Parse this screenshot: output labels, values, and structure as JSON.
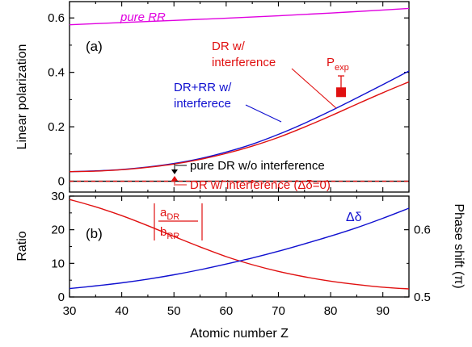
{
  "chart_data": [
    {
      "panel": "(a)",
      "type": "line",
      "ylabel": "Linear polarization",
      "xlim": [
        30,
        95
      ],
      "ylim": [
        -0.04,
        0.66
      ],
      "yticks": [
        "0",
        "0.2",
        "0.4",
        "0.6"
      ],
      "ytick_values": [
        0,
        0.2,
        0.4,
        0.6
      ],
      "series": [
        {
          "name": "pure RR",
          "color": "#e000e0",
          "x": [
            30,
            40,
            50,
            60,
            70,
            80,
            90,
            95
          ],
          "y": [
            0.575,
            0.583,
            0.591,
            0.599,
            0.608,
            0.618,
            0.629,
            0.635
          ]
        },
        {
          "name": "DR+RR w/ interferece",
          "color": "#1010d0",
          "x": [
            30,
            35,
            40,
            45,
            50,
            55,
            60,
            65,
            70,
            75,
            80,
            85,
            90,
            95
          ],
          "y": [
            0.035,
            0.038,
            0.043,
            0.052,
            0.065,
            0.083,
            0.107,
            0.136,
            0.172,
            0.213,
            0.258,
            0.306,
            0.355,
            0.405
          ]
        },
        {
          "name": "DR w/ interference",
          "color": "#e01010",
          "x": [
            30,
            35,
            40,
            45,
            50,
            55,
            60,
            65,
            70,
            75,
            80,
            85,
            90,
            95
          ],
          "y": [
            0.035,
            0.037,
            0.042,
            0.051,
            0.063,
            0.08,
            0.102,
            0.129,
            0.161,
            0.199,
            0.24,
            0.283,
            0.325,
            0.365
          ]
        },
        {
          "name": "pure DR w/o interference",
          "color": "#000000",
          "x": [
            30,
            95
          ],
          "y": [
            0,
            0
          ]
        },
        {
          "name": "DR w/ interference (Δδ=0)",
          "color": "#e01010",
          "dashed": true,
          "x": [
            30,
            95
          ],
          "y": [
            0,
            0
          ]
        },
        {
          "name": "P_exp",
          "color": "#e01010",
          "marker": "square",
          "x": [
            82
          ],
          "y": [
            0.327
          ],
          "err_plus": 0.06,
          "err_minus": 0
        }
      ],
      "annotations": {
        "panel_label": "(a)",
        "pure_rr": "pure RR",
        "dr_line1": "DR w/",
        "dr_line2": "interference",
        "drrr_line1": "DR+RR w/",
        "drrr_line2": "interferece",
        "pexp_main": "P",
        "pexp_sub": "exp",
        "pure_dr": "pure DR w/o interference",
        "dr_zero": "DR w/ interference (Δδ=0)"
      }
    },
    {
      "panel": "(b)",
      "type": "line",
      "xlabel": "Atomic number Z",
      "ylabel": "Ratio",
      "ylabel_right": "Phase shift (π)",
      "xlim": [
        30,
        95
      ],
      "xticks": [
        "30",
        "40",
        "50",
        "60",
        "70",
        "80",
        "90"
      ],
      "xtick_values": [
        30,
        40,
        50,
        60,
        70,
        80,
        90
      ],
      "ylim": [
        0,
        30
      ],
      "yticks": [
        "0",
        "10",
        "20",
        "30"
      ],
      "ytick_values": [
        0,
        10,
        20,
        30
      ],
      "ylim_right": [
        0.5,
        0.65
      ],
      "yticks_right": [
        "0.5",
        "0.6"
      ],
      "ytick_right_values": [
        0.5,
        0.6
      ],
      "series": [
        {
          "name": "|a_DR / b_RR|",
          "axis": "left",
          "color": "#e01010",
          "x": [
            30,
            35,
            40,
            45,
            50,
            55,
            60,
            65,
            70,
            75,
            80,
            85,
            90,
            95
          ],
          "y": [
            29.0,
            26.8,
            24.2,
            21.2,
            18.0,
            14.9,
            12.0,
            9.6,
            7.6,
            6.0,
            4.7,
            3.7,
            2.9,
            2.4
          ]
        },
        {
          "name": "Δδ",
          "axis": "right",
          "color": "#1010d0",
          "x": [
            30,
            35,
            40,
            45,
            50,
            55,
            60,
            65,
            70,
            75,
            80,
            85,
            90,
            95
          ],
          "y": [
            0.5125,
            0.5165,
            0.521,
            0.5265,
            0.533,
            0.5405,
            0.549,
            0.558,
            0.568,
            0.579,
            0.5905,
            0.603,
            0.617,
            0.632
          ]
        }
      ],
      "annotations": {
        "panel_label": "(b)",
        "ratio_num_main": "a",
        "ratio_num_sub": "DR",
        "ratio_den_main": "b",
        "ratio_den_sub": "RR",
        "delta": "Δδ"
      }
    }
  ]
}
